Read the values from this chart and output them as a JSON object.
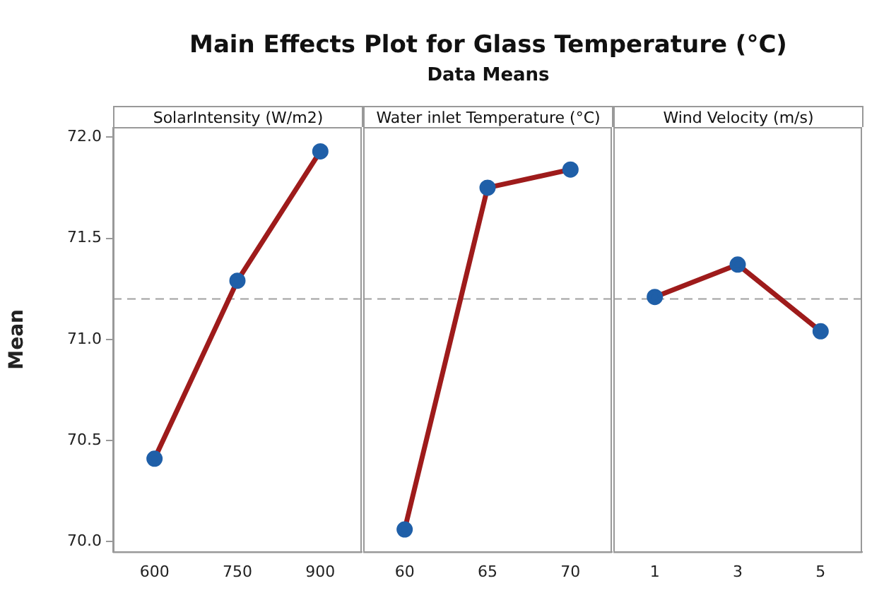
{
  "chart_data": [
    {
      "type": "line",
      "xlabel": "SolarIntensity (W/m2)",
      "ylabel": "Mean",
      "categories": [
        "600",
        "750",
        "900"
      ],
      "series": [
        {
          "color": "#9e1b1b",
          "colors": [
            "#1f5fa8",
            "#1f5fa8",
            "#1f5fa8"
          ],
          "values": [
            70.41,
            71.29,
            71.93
          ]
        }
      ],
      "marker": "circle",
      "ylim": [
        69.95,
        72.05
      ],
      "yticks": [
        {
          "value": 70,
          "label": "70.0"
        },
        {
          "value": 70.5,
          "label": "70.5"
        },
        {
          "value": 71,
          "label": "71.0"
        },
        {
          "value": 71.5,
          "label": "71.5"
        },
        {
          "value": 72,
          "label": "72.0"
        }
      ],
      "ref_lines": [
        {
          "axis": "y",
          "value": 71.2,
          "color": "#a0a0a0",
          "line_style": "dashed"
        }
      ],
      "grid": false,
      "legend": false
    },
    {
      "type": "line",
      "title": "Main Effects Plot for Glass Temperature (°C)",
      "subtitle": "Data Means",
      "xlabel": "Water inlet Temperature (°C)",
      "categories": [
        "60",
        "65",
        "70"
      ],
      "series": [
        {
          "color": "#9e1b1b",
          "colors": [
            "#1f5fa8",
            "#1f5fa8",
            "#1f5fa8"
          ],
          "values": [
            70.06,
            71.75,
            71.84
          ]
        }
      ],
      "marker": "circle",
      "ylim": [
        69.95,
        72.05
      ],
      "tick_labels": "x",
      "ref_lines": [
        {
          "axis": "y",
          "value": 71.2,
          "color": "#a0a0a0",
          "line_style": "dashed"
        }
      ],
      "grid": false,
      "legend": false
    },
    {
      "type": "line",
      "xlabel": "Wind Velocity (m/s)",
      "categories": [
        "1",
        "3",
        "5"
      ],
      "series": [
        {
          "color": "#9e1b1b",
          "colors": [
            "#1f5fa8",
            "#1f5fa8",
            "#1f5fa8"
          ],
          "values": [
            71.21,
            71.37,
            71.04
          ]
        }
      ],
      "marker": "circle",
      "ylim": [
        69.95,
        72.05
      ],
      "tick_labels": "x",
      "ref_lines": [
        {
          "axis": "y",
          "value": 71.2,
          "color": "#a0a0a0",
          "line_style": "dashed"
        }
      ],
      "grid": false,
      "legend": false
    }
  ]
}
